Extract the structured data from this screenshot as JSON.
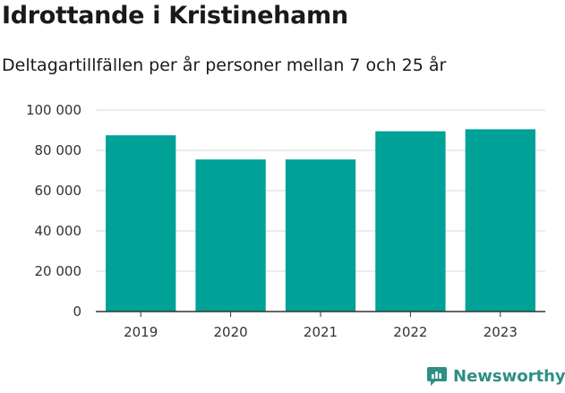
{
  "title": "Idrottande i Kristinehamn",
  "subtitle": "Deltagartillfällen per år personer mellan 7 och 25 år",
  "brand": {
    "name": "Newsworthy",
    "color": "#2d8f85",
    "icon": "newsworthy-logo-icon"
  },
  "colors": {
    "bar": "#00a196",
    "grid": "#d9d9d9",
    "axis": "#333333"
  },
  "chart_data": {
    "type": "bar",
    "categories": [
      "2019",
      "2020",
      "2021",
      "2022",
      "2023"
    ],
    "values": [
      87500,
      75500,
      75500,
      89500,
      90500
    ],
    "ylim": [
      0,
      100000
    ],
    "yticks": [
      0,
      20000,
      40000,
      60000,
      80000,
      100000
    ],
    "ytick_labels": [
      "0",
      "20 000",
      "40 000",
      "60 000",
      "80 000",
      "100 000"
    ],
    "grid": true,
    "legend": "none"
  }
}
